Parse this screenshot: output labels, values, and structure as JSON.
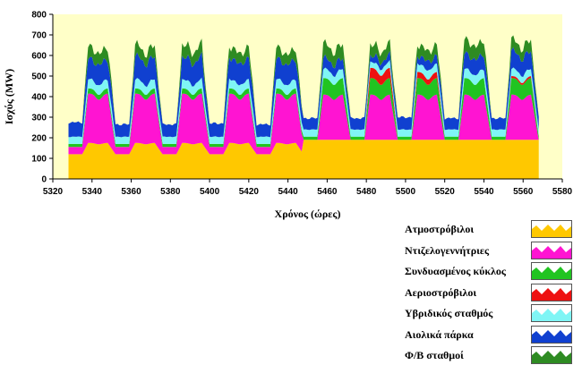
{
  "chart_data": {
    "type": "area",
    "stacked": true,
    "title": "",
    "xlabel": "Χρόνος (ώρες)",
    "ylabel": "Ισχύς (MW)",
    "xlim": [
      5320,
      5580
    ],
    "ylim": [
      0,
      800
    ],
    "xticks": [
      5320,
      5340,
      5360,
      5380,
      5400,
      5420,
      5440,
      5460,
      5480,
      5500,
      5520,
      5540,
      5560,
      5580
    ],
    "yticks": [
      0,
      100,
      200,
      300,
      400,
      500,
      600,
      700,
      800
    ],
    "x_range_of_data": [
      5328,
      5568
    ],
    "plot_background": "#FFFFC8",
    "grid": false,
    "legend_position": "right-bottom",
    "day_starts": [
      5328,
      5352,
      5376,
      5400,
      5424,
      5448,
      5472,
      5496,
      5520,
      5544
    ],
    "series": [
      {
        "name": "Ατμοστρόβιλοι",
        "color": "#FFC800",
        "night_values": [
          120,
          120,
          120,
          120,
          120,
          190,
          190,
          190,
          190,
          190
        ],
        "day_values": [
          175,
          175,
          175,
          175,
          175,
          190,
          190,
          190,
          190,
          190
        ]
      },
      {
        "name": "Ντιζελογεννήτριες",
        "color": "#FF14D2",
        "night_values": [
          35,
          35,
          35,
          35,
          35,
          0,
          0,
          0,
          0,
          0
        ],
        "day_values": [
          240,
          240,
          240,
          240,
          240,
          220,
          220,
          220,
          220,
          220
        ]
      },
      {
        "name": "Συνδυασμένος κύκλος",
        "color": "#21C421",
        "night_values": [
          15,
          15,
          15,
          15,
          15,
          15,
          15,
          15,
          15,
          15
        ],
        "day_values": [
          25,
          25,
          25,
          25,
          25,
          80,
          80,
          80,
          80,
          80
        ]
      },
      {
        "name": "Αεριοστρόβιλοι",
        "color": "#EE1111",
        "night_values": [
          0,
          0,
          0,
          0,
          0,
          0,
          0,
          0,
          0,
          0
        ],
        "day_values": [
          0,
          0,
          0,
          0,
          0,
          0,
          50,
          30,
          0,
          10
        ]
      },
      {
        "name": "Υβριδικός σταθμός",
        "color": "#7FF5F5",
        "night_values": [
          35,
          35,
          35,
          35,
          35,
          35,
          35,
          35,
          35,
          35
        ],
        "day_values": [
          45,
          45,
          45,
          45,
          45,
          45,
          30,
          40,
          45,
          35
        ]
      },
      {
        "name": "Αιολικά πάρκα",
        "color": "#1040D0",
        "night_values": [
          70,
          60,
          60,
          65,
          60,
          55,
          55,
          60,
          55,
          55
        ],
        "day_values": [
          100,
          110,
          110,
          105,
          100,
          50,
          30,
          40,
          75,
          85
        ]
      },
      {
        "name": "Φ/Β σταθμοί",
        "color": "#2E8B22",
        "night_values": [
          0,
          0,
          0,
          0,
          0,
          0,
          0,
          0,
          0,
          0
        ],
        "day_values": [
          60,
          55,
          60,
          55,
          55,
          70,
          55,
          55,
          70,
          55
        ]
      }
    ]
  }
}
